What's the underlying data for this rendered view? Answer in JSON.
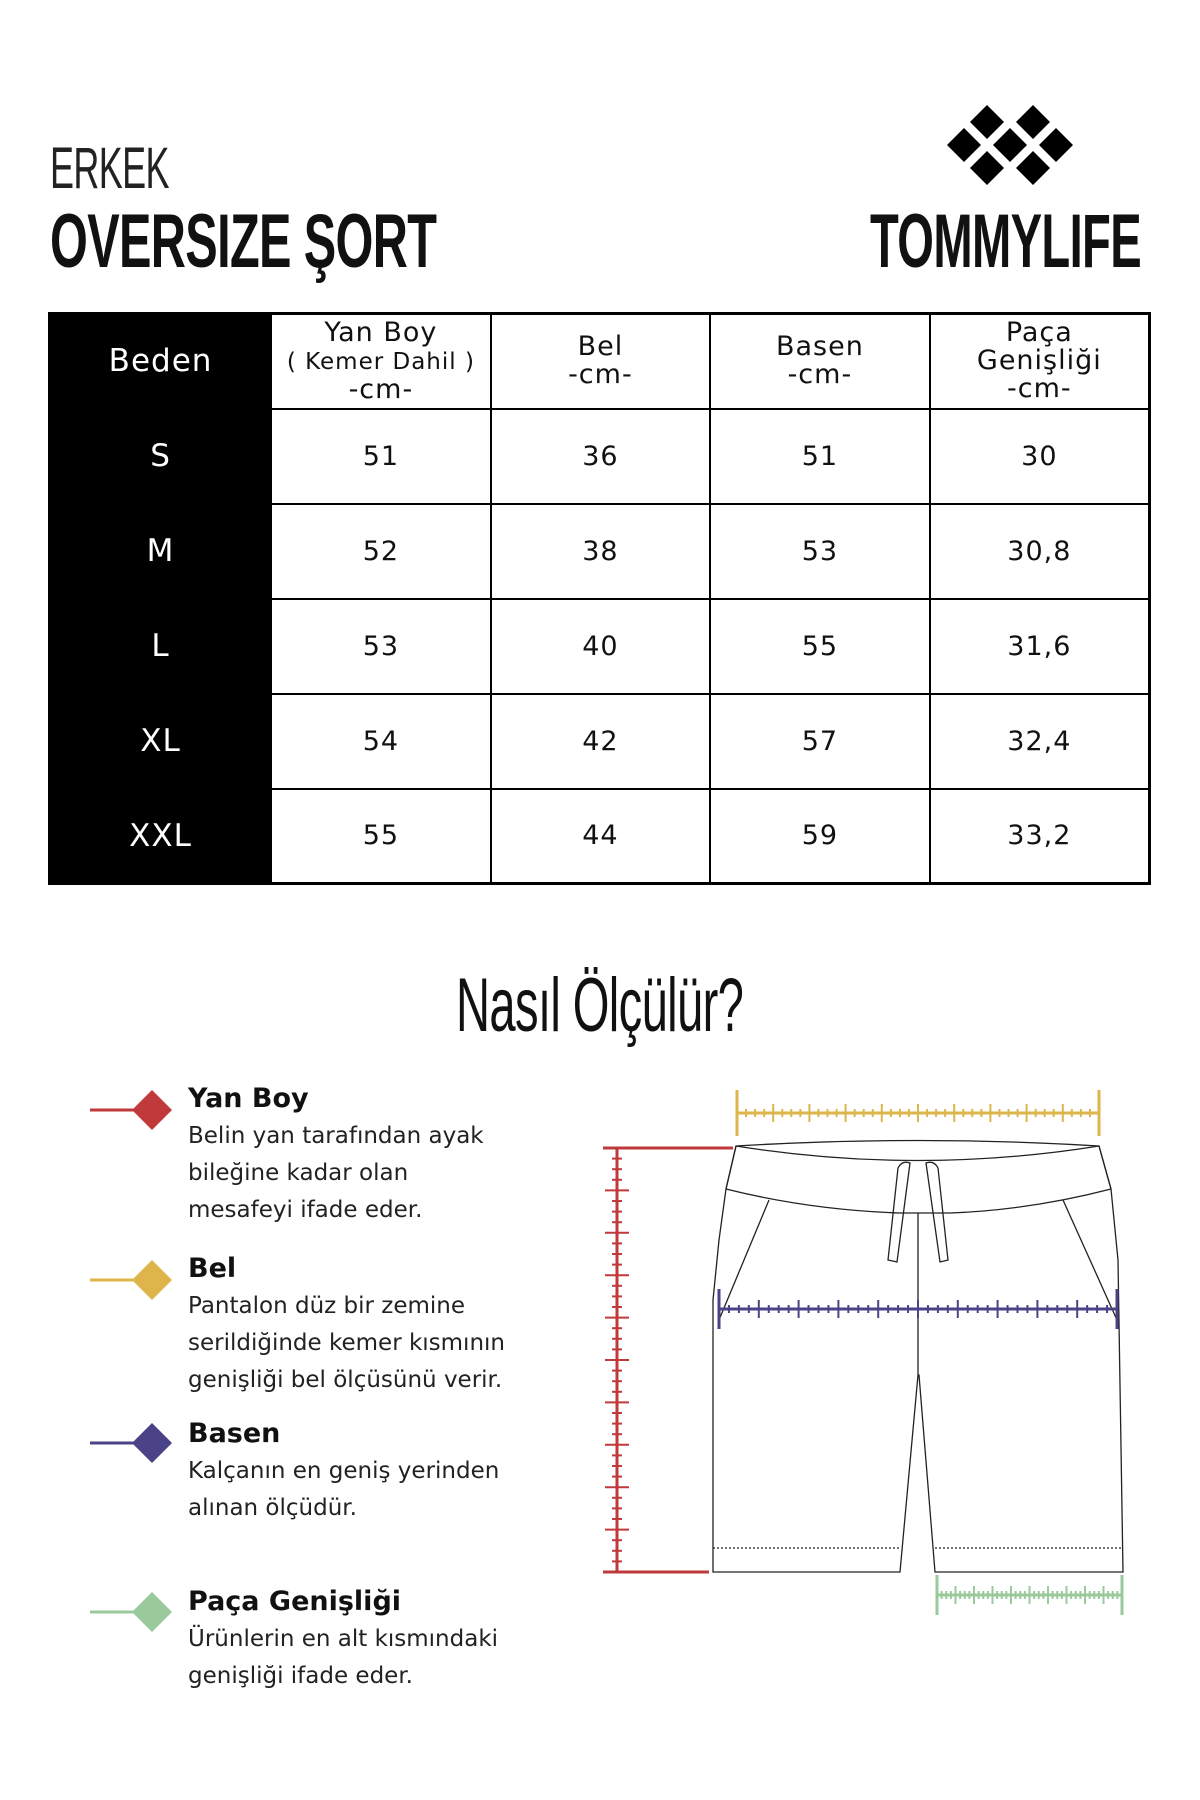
{
  "header": {
    "subtitle": "ERKEK",
    "title": "OVERSIZE ŞORT",
    "brand": "TOMMYLIFE"
  },
  "table": {
    "columns": [
      {
        "label": "Beden"
      },
      {
        "label": "Yan Boy",
        "note": "( Kemer Dahil )",
        "unit": "-cm-"
      },
      {
        "label": "Bel",
        "unit": "-cm-"
      },
      {
        "label": "Basen",
        "unit": "-cm-"
      },
      {
        "label": "Paça Genişliği",
        "unit": "-cm-"
      }
    ],
    "rows": [
      [
        "S",
        "51",
        "36",
        "51",
        "30"
      ],
      [
        "M",
        "52",
        "38",
        "53",
        "30,8"
      ],
      [
        "L",
        "53",
        "40",
        "55",
        "31,6"
      ],
      [
        "XL",
        "54",
        "42",
        "57",
        "32,4"
      ],
      [
        "XXL",
        "55",
        "44",
        "59",
        "33,2"
      ]
    ]
  },
  "guide": {
    "title": "Nasıl Ölçülür?",
    "items": [
      {
        "title": "Yan Boy",
        "text": "Belin yan tarafından ayak bileğine kadar olan mesafeyi ifade eder.",
        "color": "#c0393b"
      },
      {
        "title": "Bel",
        "text": "Pantalon düz bir zemine serildiğinde kemer kısmının genişliği bel ölçüsünü verir.",
        "color": "#ddb54a"
      },
      {
        "title": "Basen",
        "text": "Kalçanın en geniş yerinden alınan ölçüdür.",
        "color": "#4b4387"
      },
      {
        "title": "Paça Genişliği",
        "text": "Ürünlerin en alt kısmındaki genişliği ifade eder.",
        "color": "#9ac99b"
      }
    ]
  }
}
